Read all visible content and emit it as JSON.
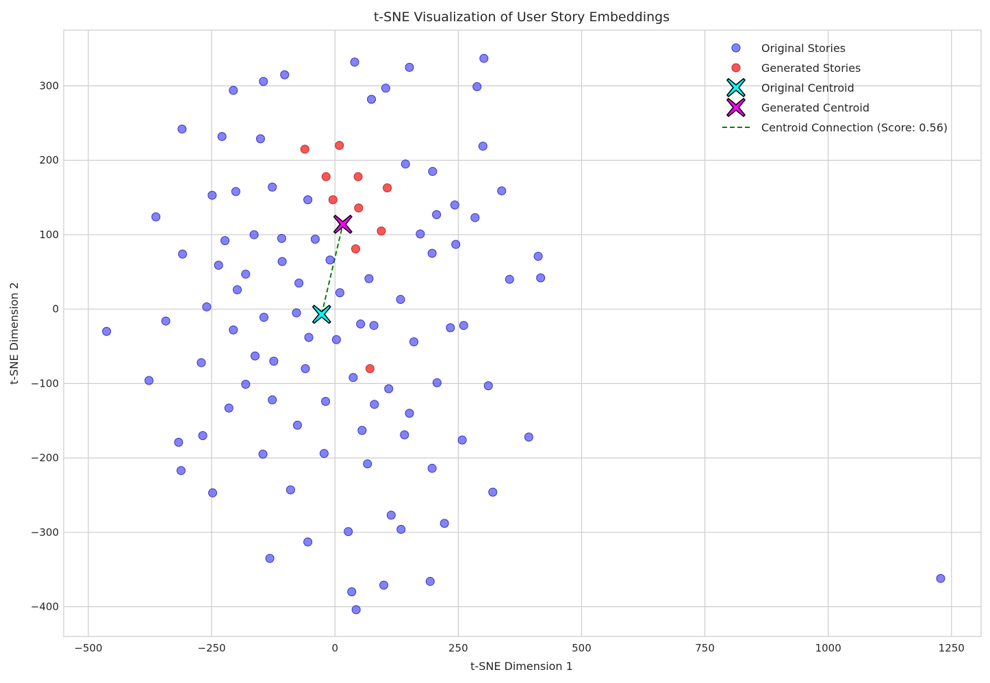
{
  "chart_data": {
    "type": "scatter",
    "title": "t-SNE Visualization of User Story Embeddings",
    "xlabel": "t-SNE Dimension 1",
    "ylabel": "t-SNE Dimension 2",
    "xlim": [
      -550,
      1310
    ],
    "ylim": [
      -440,
      375
    ],
    "xticks": [
      -500,
      -250,
      0,
      250,
      500,
      750,
      1000,
      1250
    ],
    "yticks": [
      -400,
      -300,
      -200,
      -100,
      0,
      100,
      200,
      300
    ],
    "grid": true,
    "legend_position": "top-right",
    "colors": {
      "original": "#5a5af0",
      "generated": "#f03c3c",
      "original_centroid": "#00ffff",
      "generated_centroid": "#ff00ff",
      "connection": "#008000",
      "grid": "#cccccc",
      "axes": "#cccccc"
    },
    "series": [
      {
        "name": "Original Stories",
        "points": [
          [
            40,
            332
          ],
          [
            151,
            325
          ],
          [
            302,
            337
          ],
          [
            -102,
            315
          ],
          [
            -145,
            306
          ],
          [
            -206,
            294
          ],
          [
            103,
            297
          ],
          [
            288,
            299
          ],
          [
            74,
            282
          ],
          [
            -310,
            242
          ],
          [
            -229,
            232
          ],
          [
            -151,
            229
          ],
          [
            300,
            219
          ],
          [
            143,
            195
          ],
          [
            198,
            185
          ],
          [
            -127,
            164
          ],
          [
            -201,
            158
          ],
          [
            -249,
            153
          ],
          [
            -55,
            147
          ],
          [
            338,
            159
          ],
          [
            -363,
            124
          ],
          [
            243,
            140
          ],
          [
            206,
            127
          ],
          [
            284,
            123
          ],
          [
            173,
            101
          ],
          [
            -164,
            100
          ],
          [
            -108,
            95
          ],
          [
            -223,
            92
          ],
          [
            -40,
            94
          ],
          [
            245,
            87
          ],
          [
            197,
            75
          ],
          [
            -309,
            74
          ],
          [
            -107,
            64
          ],
          [
            -236,
            59
          ],
          [
            -10,
            66
          ],
          [
            412,
            71
          ],
          [
            -181,
            47
          ],
          [
            69,
            41
          ],
          [
            354,
            40
          ],
          [
            417,
            42
          ],
          [
            -73,
            35
          ],
          [
            -198,
            26
          ],
          [
            10,
            22
          ],
          [
            133,
            13
          ],
          [
            -260,
            3
          ],
          [
            -78,
            -5
          ],
          [
            -144,
            -11
          ],
          [
            -343,
            -16
          ],
          [
            52,
            -20
          ],
          [
            79,
            -22
          ],
          [
            234,
            -25
          ],
          [
            261,
            -22
          ],
          [
            -463,
            -30
          ],
          [
            -206,
            -28
          ],
          [
            -53,
            -38
          ],
          [
            3,
            -41
          ],
          [
            160,
            -44
          ],
          [
            -162,
            -63
          ],
          [
            -124,
            -70
          ],
          [
            -271,
            -72
          ],
          [
            -60,
            -80
          ],
          [
            -377,
            -96
          ],
          [
            37,
            -92
          ],
          [
            -181,
            -101
          ],
          [
            207,
            -99
          ],
          [
            311,
            -103
          ],
          [
            109,
            -107
          ],
          [
            -127,
            -122
          ],
          [
            -19,
            -124
          ],
          [
            80,
            -128
          ],
          [
            -215,
            -133
          ],
          [
            151,
            -140
          ],
          [
            -76,
            -156
          ],
          [
            55,
            -163
          ],
          [
            141,
            -169
          ],
          [
            -268,
            -170
          ],
          [
            258,
            -176
          ],
          [
            393,
            -172
          ],
          [
            -317,
            -179
          ],
          [
            -146,
            -195
          ],
          [
            -22,
            -194
          ],
          [
            66,
            -208
          ],
          [
            197,
            -214
          ],
          [
            -312,
            -217
          ],
          [
            -248,
            -247
          ],
          [
            -90,
            -243
          ],
          [
            320,
            -246
          ],
          [
            114,
            -277
          ],
          [
            222,
            -288
          ],
          [
            27,
            -299
          ],
          [
            134,
            -296
          ],
          [
            -55,
            -313
          ],
          [
            -132,
            -335
          ],
          [
            193,
            -366
          ],
          [
            99,
            -371
          ],
          [
            34,
            -380
          ],
          [
            43,
            -404
          ],
          [
            1228,
            -362
          ]
        ]
      },
      {
        "name": "Generated Stories",
        "points": [
          [
            -61,
            215
          ],
          [
            9,
            220
          ],
          [
            -18,
            178
          ],
          [
            47,
            178
          ],
          [
            106,
            163
          ],
          [
            -4,
            147
          ],
          [
            48,
            136
          ],
          [
            94,
            105
          ],
          [
            42,
            81
          ],
          [
            71,
            -80
          ]
        ]
      },
      {
        "name": "Original Centroid",
        "points": [
          [
            -27,
            -7
          ]
        ]
      },
      {
        "name": "Generated Centroid",
        "points": [
          [
            16,
            114
          ]
        ]
      },
      {
        "name": "Centroid Connection (Score: 0.56)",
        "points": [
          [
            -27,
            -7
          ],
          [
            16,
            114
          ]
        ]
      }
    ]
  }
}
